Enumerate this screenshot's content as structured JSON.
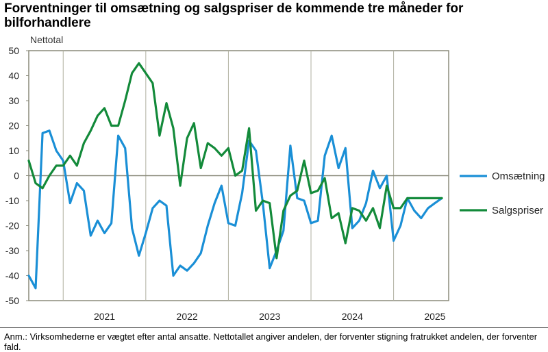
{
  "title": "Forventninger til omsætning og salgspriser de kommende tre måneder for bilforhandlere",
  "note": "Anm.: Virksomhederne er vægtet efter antal ansatte. Nettotallet angiver andelen, der forventer stigning fratrukket andelen, der forventer fald.",
  "chart_data": {
    "type": "line",
    "ylabel": "Nettotal",
    "ylim": [
      -50,
      50
    ],
    "yticks": [
      50,
      40,
      30,
      20,
      10,
      0,
      -10,
      -20,
      -30,
      -40,
      -50
    ],
    "year_labels": [
      "2021",
      "2022",
      "2023",
      "2024",
      "2025"
    ],
    "x_start": "2020-08",
    "x_end": "2025-09",
    "grid": true,
    "legend_position": "right",
    "series": [
      {
        "name": "Omsætning",
        "color": "#1a8fd6",
        "x": [
          "2020-08",
          "2020-09",
          "2020-10",
          "2020-11",
          "2020-12",
          "2021-01",
          "2021-02",
          "2021-03",
          "2021-04",
          "2021-05",
          "2021-06",
          "2021-07",
          "2021-08",
          "2021-09",
          "2021-10",
          "2021-11",
          "2021-12",
          "2022-01",
          "2022-02",
          "2022-03",
          "2022-04",
          "2022-05",
          "2022-06",
          "2022-07",
          "2022-08",
          "2022-09",
          "2022-10",
          "2022-11",
          "2022-12",
          "2023-01",
          "2023-02",
          "2023-03",
          "2023-04",
          "2023-05",
          "2023-06",
          "2023-07",
          "2023-08",
          "2023-09",
          "2023-10",
          "2023-11",
          "2023-12",
          "2024-01",
          "2024-02",
          "2024-03",
          "2024-04",
          "2024-05",
          "2024-06",
          "2024-07",
          "2024-08",
          "2024-09",
          "2024-10",
          "2024-11",
          "2024-12",
          "2025-01",
          "2025-02",
          "2025-03",
          "2025-04",
          "2025-05",
          "2025-06",
          "2025-07",
          "2025-08"
        ],
        "values": [
          -40,
          -45,
          17,
          18,
          10,
          6,
          -11,
          -3,
          -6,
          -24,
          -18,
          -23,
          -19,
          16,
          11,
          -21,
          -32,
          -23,
          -13,
          -10,
          -12,
          -40,
          -36,
          -38,
          -35,
          -31,
          -20,
          -11,
          -4,
          -19,
          -20,
          -7,
          14,
          10,
          -11,
          -37,
          -30,
          -22,
          12,
          -9,
          -10,
          -19,
          -18,
          8,
          16,
          3,
          11,
          -21,
          -18,
          -11,
          2,
          -5,
          0,
          -26,
          -20,
          -9,
          -14,
          -17,
          -13,
          -11,
          -9
        ]
      },
      {
        "name": "Salgspriser",
        "color": "#138a3a",
        "x": [
          "2020-08",
          "2020-09",
          "2020-10",
          "2020-11",
          "2020-12",
          "2021-01",
          "2021-02",
          "2021-03",
          "2021-04",
          "2021-05",
          "2021-06",
          "2021-07",
          "2021-08",
          "2021-09",
          "2021-10",
          "2021-11",
          "2021-12",
          "2022-01",
          "2022-02",
          "2022-03",
          "2022-04",
          "2022-05",
          "2022-06",
          "2022-07",
          "2022-08",
          "2022-09",
          "2022-10",
          "2022-11",
          "2022-12",
          "2023-01",
          "2023-02",
          "2023-03",
          "2023-04",
          "2023-05",
          "2023-06",
          "2023-07",
          "2023-08",
          "2023-09",
          "2023-10",
          "2023-11",
          "2023-12",
          "2024-01",
          "2024-02",
          "2024-03",
          "2024-04",
          "2024-05",
          "2024-06",
          "2024-07",
          "2024-08",
          "2024-09",
          "2024-10",
          "2024-11",
          "2024-12",
          "2025-01",
          "2025-02",
          "2025-03",
          "2025-04",
          "2025-05",
          "2025-06",
          "2025-07",
          "2025-08"
        ],
        "values": [
          6,
          -3,
          -5,
          0,
          4,
          4,
          8,
          4,
          13,
          18,
          24,
          27,
          20,
          20,
          30,
          41,
          45,
          41,
          37,
          16,
          29,
          19,
          -4,
          15,
          21,
          3,
          13,
          11,
          8,
          11,
          0,
          2,
          19,
          -14,
          -10,
          -11,
          -33,
          -14,
          -8,
          -6,
          6,
          -7,
          -6,
          -1,
          -17,
          -15,
          -27,
          -13,
          -14,
          -18,
          -13,
          -21,
          -4,
          -13,
          -13,
          -9,
          -9,
          -9,
          -9,
          -9,
          -9
        ]
      }
    ]
  }
}
